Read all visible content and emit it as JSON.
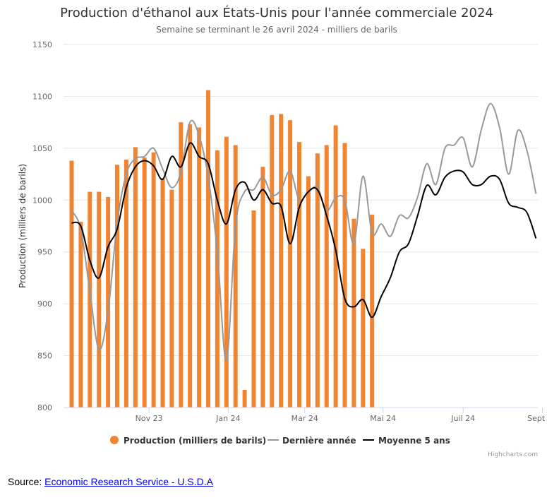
{
  "chart_data": {
    "type": "bar",
    "title": "Production d'éthanol aux États-Unis pour l'année commerciale 2024",
    "subtitle": "Semaine se terminant le 26 avril 2024 - milliers de barils",
    "ylabel": "Production (milliers de barils)",
    "ylim": [
      800,
      1150
    ],
    "yticks": [
      800,
      850,
      900,
      950,
      1000,
      1050,
      1100,
      1150
    ],
    "x_tick_labels": [
      {
        "label": "Nov 23",
        "week": 8.5
      },
      {
        "label": "Jan 24",
        "week": 17.2
      },
      {
        "label": "Mar 24",
        "week": 25.6
      },
      {
        "label": "Mai 24",
        "week": 34.2
      },
      {
        "label": "Juil 24",
        "week": 43.0
      },
      {
        "label": "Sept 24",
        "week": 51.7
      }
    ],
    "x_range_weeks": [
      0,
      52
    ],
    "grid": true,
    "legend_position": "bottom",
    "colors": {
      "production": "#f08431",
      "last_year": "#999999",
      "five_year": "#000000"
    },
    "series": [
      {
        "name": "Production (milliers de barils)",
        "type": "bar",
        "values": [
          1038,
          979,
          1008,
          1008,
          1003,
          1034,
          1039,
          1051,
          1041,
          1046,
          1021,
          1010,
          1075,
          1073,
          1070,
          1106,
          1048,
          1061,
          1053,
          817,
          990,
          1032,
          1082,
          1083,
          1077,
          1056,
          1023,
          1045,
          1053,
          1072,
          1055,
          982,
          953,
          986
        ]
      },
      {
        "name": "Dernière année",
        "type": "line",
        "values": [
          990,
          972,
          912,
          856,
          893,
          978,
          1025,
          1040,
          1042,
          1050,
          1030,
          1012,
          1027,
          1075,
          1062,
          1022,
          950,
          845,
          975,
          1008,
          1010,
          1022,
          1005,
          1010,
          1028,
          1000,
          1008,
          1012,
          990,
          1002,
          1000,
          958,
          1023,
          968,
          977,
          965,
          985,
          983,
          1003,
          1035,
          1015,
          1050,
          1053,
          1060,
          1032,
          1068,
          1093,
          1070,
          1025,
          1067,
          1048,
          1006
        ]
      },
      {
        "name": "Moyenne 5 ans",
        "type": "line",
        "values": [
          978,
          975,
          942,
          925,
          955,
          972,
          1012,
          1032,
          1038,
          1033,
          1020,
          1042,
          1032,
          1055,
          1042,
          1035,
          1000,
          977,
          1010,
          1017,
          1000,
          1010,
          997,
          994,
          958,
          993,
          1008,
          1010,
          985,
          952,
          905,
          897,
          904,
          887,
          907,
          925,
          950,
          958,
          985,
          1014,
          1005,
          1022,
          1028,
          1027,
          1015,
          1015,
          1023,
          1020,
          997,
          993,
          988,
          963
        ]
      }
    ]
  },
  "credits": "Highcharts.com",
  "source": {
    "prefix": "Source: ",
    "link_text": "Economic Research Service - U.S.D.A"
  }
}
